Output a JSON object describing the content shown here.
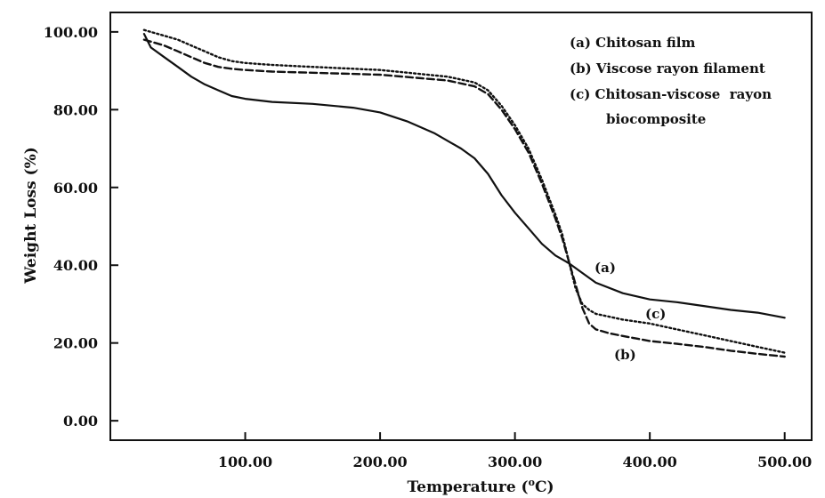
{
  "chart_data": {
    "type": "line",
    "xlabel": "Temperature (",
    "xlabel_unit_sup": "o",
    "xlabel_unit_end": "C)",
    "ylabel": "Weight Loss (%)",
    "xlim": [
      0,
      520
    ],
    "ylim": [
      -5,
      105
    ],
    "x_ticks": [
      100,
      200,
      300,
      400,
      500
    ],
    "x_tick_labels": [
      "100.00",
      "200.00",
      "300.00",
      "400.00",
      "500.00"
    ],
    "y_ticks": [
      0,
      20,
      40,
      60,
      80,
      100
    ],
    "y_tick_labels": [
      "0.00",
      "20.00",
      "40.00",
      "60.00",
      "80.00",
      "100.00"
    ],
    "grid": false,
    "legend_placement": "top-right",
    "legend": [
      "(a) Chitosan film",
      "(b) Viscose rayon filament",
      "(c) Chitosan-viscose  rayon",
      "biocomposite"
    ],
    "series": [
      {
        "name": "(a) Chitosan film",
        "label": "(a)",
        "style": "solid",
        "color": "#111111",
        "x": [
          25,
          30,
          40,
          50,
          60,
          70,
          80,
          90,
          100,
          120,
          150,
          180,
          200,
          220,
          240,
          260,
          270,
          280,
          290,
          300,
          310,
          320,
          330,
          340,
          350,
          360,
          380,
          400,
          420,
          440,
          460,
          480,
          500
        ],
        "y": [
          99.5,
          96,
          93.5,
          91,
          88.5,
          86.5,
          85,
          83.5,
          82.8,
          82,
          81.5,
          80.5,
          79.3,
          77,
          74,
          70,
          67.5,
          63.5,
          58,
          53.5,
          49.5,
          45.5,
          42.5,
          40.5,
          38,
          35.5,
          32.8,
          31.2,
          30.5,
          29.5,
          28.5,
          27.8,
          26.5
        ]
      },
      {
        "name": "(b) Viscose rayon filament",
        "label": "(b)",
        "style": "dashed",
        "color": "#111111",
        "x": [
          25,
          30,
          40,
          50,
          60,
          70,
          80,
          90,
          100,
          120,
          150,
          200,
          250,
          270,
          280,
          290,
          300,
          310,
          320,
          330,
          335,
          340,
          345,
          350,
          355,
          360,
          370,
          380,
          400,
          420,
          440,
          460,
          480,
          500
        ],
        "y": [
          98,
          97.5,
          96.5,
          95,
          93.5,
          92,
          91,
          90.5,
          90.2,
          89.8,
          89.5,
          89,
          87.5,
          86,
          84,
          80,
          75,
          69,
          61,
          52,
          47,
          41,
          35,
          29,
          25,
          23.5,
          22.5,
          21.8,
          20.5,
          19.8,
          19,
          18,
          17.2,
          16.5
        ]
      },
      {
        "name": "(c) Chitosan-viscose  rayon biocomposite",
        "label": "(c)",
        "style": "dotted",
        "color": "#111111",
        "x": [
          25,
          30,
          40,
          50,
          60,
          70,
          80,
          90,
          100,
          120,
          150,
          200,
          250,
          270,
          280,
          290,
          300,
          310,
          320,
          330,
          335,
          340,
          345,
          350,
          355,
          360,
          380,
          400,
          420,
          440,
          460,
          480,
          500
        ],
        "y": [
          100.5,
          100,
          99,
          98,
          96.5,
          95,
          93.5,
          92.5,
          92,
          91.5,
          91,
          90.2,
          88.5,
          87,
          85,
          81,
          76,
          70,
          62,
          53,
          48,
          41,
          34,
          30,
          28.5,
          27.5,
          26,
          25,
          23.5,
          22,
          20.5,
          19,
          17.5
        ]
      }
    ]
  }
}
